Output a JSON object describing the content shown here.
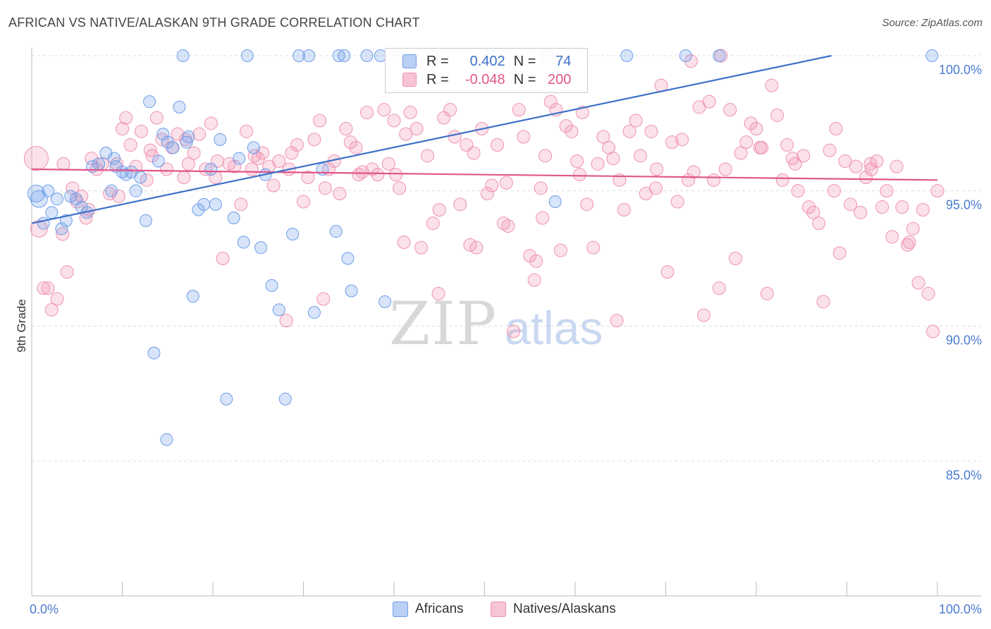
{
  "title": "AFRICAN VS NATIVE/ALASKAN 9TH GRADE CORRELATION CHART",
  "source": "Source: ZipAtlas.com",
  "watermark": {
    "zip": "ZIP",
    "atlas": "atlas"
  },
  "legend_top": {
    "africans": {
      "r_label": "R =",
      "r_value": "0.402",
      "n_label": "N =",
      "n_value": "74"
    },
    "natives": {
      "r_label": "R =",
      "r_value": "-0.048",
      "n_label": "N =",
      "n_value": "200"
    }
  },
  "legend_bottom": {
    "africans": "Africans",
    "natives": "Natives/Alaskans"
  },
  "colors": {
    "blue": "#6f9ee8",
    "blue_line": "#3d71c8",
    "pink": "#ef92b1",
    "pink_line": "#e0568b",
    "grid": "#dddddd",
    "tick_label": "#4a7bd0"
  },
  "chart_data": {
    "type": "scatter",
    "title": "AFRICAN VS NATIVE/ALASKAN 9TH GRADE CORRELATION CHART",
    "xlabel": "",
    "ylabel": "9th Grade",
    "xlim": [
      0,
      100
    ],
    "ylim": [
      80.5,
      100.5
    ],
    "x_tick_labels": [
      "0.0%",
      "100.0%"
    ],
    "y_ticks": [
      85,
      90,
      95,
      100
    ],
    "y_tick_labels": [
      "85.0%",
      "90.0%",
      "95.0%",
      "100.0%"
    ],
    "grid": true,
    "legend_position": "top-center",
    "series": [
      {
        "name": "Africans",
        "r": 0.402,
        "n": 74,
        "trend": {
          "x": [
            0,
            88.3
          ],
          "y": [
            93.8,
            100.0
          ]
        },
        "points": [
          [
            0.5,
            94.9
          ],
          [
            0.8,
            94.7
          ],
          [
            1.3,
            93.8
          ],
          [
            1.8,
            95.0
          ],
          [
            2.2,
            94.2
          ],
          [
            2.8,
            94.7
          ],
          [
            3.3,
            93.6
          ],
          [
            3.8,
            93.9
          ],
          [
            4.3,
            94.8
          ],
          [
            4.9,
            94.7
          ],
          [
            5.5,
            94.4
          ],
          [
            6.1,
            94.2
          ],
          [
            6.7,
            95.9
          ],
          [
            7.4,
            96.0
          ],
          [
            8.2,
            96.4
          ],
          [
            8.8,
            95.0
          ],
          [
            9.3,
            95.9
          ],
          [
            10.0,
            95.7
          ],
          [
            10.4,
            95.6
          ],
          [
            11.0,
            95.7
          ],
          [
            11.5,
            95.0
          ],
          [
            12.0,
            95.5
          ],
          [
            12.6,
            93.9
          ],
          [
            13.0,
            98.3
          ],
          [
            13.5,
            89.0
          ],
          [
            14.0,
            96.1
          ],
          [
            14.5,
            97.1
          ],
          [
            15.0,
            96.8
          ],
          [
            15.6,
            96.6
          ],
          [
            16.3,
            98.1
          ],
          [
            16.7,
            100.0
          ],
          [
            17.3,
            97.0
          ],
          [
            17.8,
            91.1
          ],
          [
            18.4,
            94.3
          ],
          [
            19.0,
            94.5
          ],
          [
            19.8,
            95.8
          ],
          [
            20.3,
            94.5
          ],
          [
            20.8,
            96.9
          ],
          [
            21.5,
            87.3
          ],
          [
            22.3,
            94.0
          ],
          [
            22.9,
            96.2
          ],
          [
            23.4,
            93.1
          ],
          [
            23.8,
            100.0
          ],
          [
            24.5,
            96.6
          ],
          [
            25.3,
            92.9
          ],
          [
            25.8,
            95.6
          ],
          [
            26.5,
            91.5
          ],
          [
            27.3,
            90.6
          ],
          [
            28.0,
            87.3
          ],
          [
            28.8,
            93.4
          ],
          [
            29.5,
            100.0
          ],
          [
            30.6,
            100.0
          ],
          [
            31.2,
            90.5
          ],
          [
            32.1,
            95.8
          ],
          [
            33.6,
            93.5
          ],
          [
            33.9,
            100.0
          ],
          [
            34.5,
            100.0
          ],
          [
            34.9,
            92.5
          ],
          [
            35.3,
            91.3
          ],
          [
            37.0,
            100.0
          ],
          [
            38.5,
            100.0
          ],
          [
            39.0,
            90.9
          ],
          [
            40.4,
            100.0
          ],
          [
            44.3,
            100.0
          ],
          [
            50.6,
            100.0
          ],
          [
            56.9,
            100.0
          ],
          [
            57.8,
            94.6
          ],
          [
            65.7,
            100.0
          ],
          [
            72.2,
            100.0
          ],
          [
            75.9,
            100.0
          ],
          [
            14.9,
            85.8
          ],
          [
            9.1,
            96.2
          ],
          [
            17.1,
            96.8
          ],
          [
            99.4,
            100.0
          ]
        ]
      },
      {
        "name": "Natives/Alaskans",
        "r": -0.048,
        "n": 200,
        "trend": {
          "x": [
            0,
            100
          ],
          "y": [
            95.8,
            95.4
          ]
        },
        "points": [
          [
            0.5,
            96.2
          ],
          [
            0.8,
            93.6
          ],
          [
            1.3,
            91.4
          ],
          [
            1.8,
            91.4
          ],
          [
            2.2,
            90.6
          ],
          [
            2.8,
            91.0
          ],
          [
            3.4,
            93.4
          ],
          [
            3.9,
            92.0
          ],
          [
            4.5,
            95.1
          ],
          [
            5.0,
            94.6
          ],
          [
            5.5,
            94.8
          ],
          [
            6.0,
            94.0
          ],
          [
            6.6,
            96.2
          ],
          [
            7.2,
            95.8
          ],
          [
            7.8,
            96.0
          ],
          [
            8.6,
            94.9
          ],
          [
            9.4,
            96.0
          ],
          [
            10.0,
            97.3
          ],
          [
            10.4,
            97.7
          ],
          [
            10.9,
            96.7
          ],
          [
            11.5,
            95.9
          ],
          [
            12.1,
            97.2
          ],
          [
            12.7,
            95.4
          ],
          [
            13.3,
            96.3
          ],
          [
            13.8,
            97.7
          ],
          [
            14.4,
            96.9
          ],
          [
            14.9,
            95.8
          ],
          [
            15.5,
            96.6
          ],
          [
            16.1,
            97.1
          ],
          [
            16.8,
            95.5
          ],
          [
            17.3,
            96.0
          ],
          [
            17.9,
            96.4
          ],
          [
            18.5,
            97.1
          ],
          [
            19.2,
            95.8
          ],
          [
            19.8,
            97.5
          ],
          [
            20.5,
            96.1
          ],
          [
            21.1,
            92.5
          ],
          [
            21.8,
            96.0
          ],
          [
            22.4,
            95.9
          ],
          [
            23.1,
            94.5
          ],
          [
            23.7,
            97.2
          ],
          [
            24.3,
            95.8
          ],
          [
            25.0,
            96.2
          ],
          [
            25.5,
            96.4
          ],
          [
            26.2,
            95.9
          ],
          [
            26.7,
            95.2
          ],
          [
            27.3,
            96.1
          ],
          [
            28.1,
            90.2
          ],
          [
            28.7,
            96.4
          ],
          [
            29.3,
            96.7
          ],
          [
            30.0,
            94.6
          ],
          [
            30.5,
            95.5
          ],
          [
            31.2,
            96.9
          ],
          [
            31.8,
            97.6
          ],
          [
            32.4,
            95.1
          ],
          [
            32.8,
            95.8
          ],
          [
            33.4,
            96.1
          ],
          [
            34.0,
            94.9
          ],
          [
            34.7,
            97.3
          ],
          [
            35.2,
            96.8
          ],
          [
            35.8,
            96.6
          ],
          [
            36.5,
            95.7
          ],
          [
            37.0,
            97.9
          ],
          [
            37.6,
            95.8
          ],
          [
            38.2,
            95.6
          ],
          [
            38.9,
            98.0
          ],
          [
            39.4,
            96.0
          ],
          [
            40.0,
            97.6
          ],
          [
            40.6,
            95.1
          ],
          [
            41.3,
            97.1
          ],
          [
            41.8,
            97.9
          ],
          [
            42.5,
            97.3
          ],
          [
            43.0,
            92.9
          ],
          [
            43.7,
            96.3
          ],
          [
            44.3,
            93.8
          ],
          [
            45.0,
            94.3
          ],
          [
            45.5,
            97.7
          ],
          [
            46.2,
            98.0
          ],
          [
            46.7,
            97.0
          ],
          [
            47.3,
            94.5
          ],
          [
            48.0,
            96.7
          ],
          [
            48.4,
            93.0
          ],
          [
            49.1,
            92.9
          ],
          [
            49.7,
            97.3
          ],
          [
            50.3,
            94.9
          ],
          [
            50.8,
            95.2
          ],
          [
            51.4,
            96.7
          ],
          [
            52.1,
            93.8
          ],
          [
            52.6,
            93.7
          ],
          [
            53.2,
            89.8
          ],
          [
            53.8,
            98.0
          ],
          [
            54.3,
            97.0
          ],
          [
            55.0,
            92.6
          ],
          [
            55.5,
            91.7
          ],
          [
            56.2,
            95.1
          ],
          [
            56.7,
            96.3
          ],
          [
            57.3,
            98.3
          ],
          [
            57.9,
            98.0
          ],
          [
            58.4,
            92.8
          ],
          [
            59.0,
            97.4
          ],
          [
            59.6,
            97.2
          ],
          [
            60.2,
            96.1
          ],
          [
            60.8,
            97.9
          ],
          [
            61.3,
            94.5
          ],
          [
            62.0,
            92.9
          ],
          [
            62.5,
            96.0
          ],
          [
            63.1,
            97.0
          ],
          [
            63.7,
            96.6
          ],
          [
            64.2,
            96.2
          ],
          [
            64.9,
            95.4
          ],
          [
            65.4,
            94.3
          ],
          [
            66.0,
            97.2
          ],
          [
            66.7,
            97.6
          ],
          [
            67.2,
            96.3
          ],
          [
            67.8,
            94.9
          ],
          [
            68.4,
            97.2
          ],
          [
            69.0,
            95.8
          ],
          [
            69.5,
            98.9
          ],
          [
            70.2,
            92.0
          ],
          [
            70.7,
            96.8
          ],
          [
            71.3,
            94.6
          ],
          [
            71.8,
            96.9
          ],
          [
            72.5,
            95.4
          ],
          [
            73.1,
            95.7
          ],
          [
            73.7,
            98.1
          ],
          [
            74.2,
            90.4
          ],
          [
            74.8,
            98.3
          ],
          [
            75.3,
            95.4
          ],
          [
            75.9,
            91.4
          ],
          [
            76.6,
            95.8
          ],
          [
            77.1,
            98.0
          ],
          [
            77.7,
            92.5
          ],
          [
            78.3,
            96.4
          ],
          [
            78.9,
            96.8
          ],
          [
            79.4,
            97.5
          ],
          [
            80.0,
            97.3
          ],
          [
            80.6,
            96.6
          ],
          [
            81.2,
            91.2
          ],
          [
            81.7,
            98.9
          ],
          [
            82.3,
            97.8
          ],
          [
            82.9,
            95.4
          ],
          [
            83.4,
            96.7
          ],
          [
            84.0,
            96.2
          ],
          [
            84.6,
            95.0
          ],
          [
            85.2,
            96.3
          ],
          [
            85.8,
            94.4
          ],
          [
            86.3,
            94.2
          ],
          [
            86.9,
            93.8
          ],
          [
            87.4,
            90.9
          ],
          [
            88.1,
            96.5
          ],
          [
            88.6,
            95.0
          ],
          [
            89.2,
            92.7
          ],
          [
            89.8,
            96.1
          ],
          [
            90.4,
            94.5
          ],
          [
            91.0,
            95.9
          ],
          [
            91.5,
            94.2
          ],
          [
            92.1,
            95.5
          ],
          [
            92.7,
            95.8
          ],
          [
            93.3,
            96.1
          ],
          [
            93.9,
            94.4
          ],
          [
            94.4,
            95.0
          ],
          [
            95.0,
            93.3
          ],
          [
            95.5,
            95.9
          ],
          [
            96.1,
            94.4
          ],
          [
            96.7,
            93.0
          ],
          [
            97.3,
            93.6
          ],
          [
            97.9,
            91.6
          ],
          [
            98.4,
            94.3
          ],
          [
            99.0,
            91.2
          ],
          [
            99.5,
            89.8
          ],
          [
            100.0,
            95.0
          ],
          [
            3.5,
            96.0
          ],
          [
            6.3,
            94.3
          ],
          [
            9.6,
            94.8
          ],
          [
            13.1,
            96.5
          ],
          [
            17.0,
            96.9
          ],
          [
            20.3,
            95.5
          ],
          [
            24.6,
            96.3
          ],
          [
            28.4,
            95.8
          ],
          [
            32.2,
            91.0
          ],
          [
            36.1,
            95.6
          ],
          [
            40.2,
            95.6
          ],
          [
            44.9,
            91.2
          ],
          [
            48.8,
            96.4
          ],
          [
            52.4,
            95.3
          ],
          [
            56.4,
            94.0
          ],
          [
            60.5,
            95.6
          ],
          [
            64.6,
            90.2
          ],
          [
            68.9,
            95.1
          ],
          [
            72.8,
            99.8
          ],
          [
            76.1,
            100.0
          ],
          [
            80.4,
            96.6
          ],
          [
            84.3,
            96.0
          ],
          [
            88.8,
            97.3
          ],
          [
            92.6,
            96.0
          ],
          [
            96.9,
            93.1
          ],
          [
            55.7,
            92.4
          ],
          [
            41.1,
            93.1
          ]
        ]
      }
    ]
  }
}
